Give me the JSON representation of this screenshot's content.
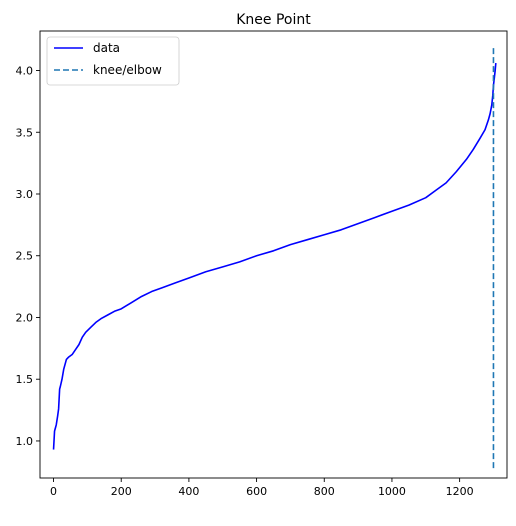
{
  "chart_data": {
    "type": "line",
    "title": "Knee Point",
    "xlabel": "",
    "ylabel": "",
    "xlim": [
      -40,
      1340
    ],
    "ylim": [
      0.7,
      4.32
    ],
    "xticks": [
      "0",
      "200",
      "400",
      "600",
      "800",
      "1000",
      "1200"
    ],
    "yticks": [
      "1.0",
      "1.5",
      "2.0",
      "2.5",
      "3.0",
      "3.5",
      "4.0"
    ],
    "grid": false,
    "legend": {
      "placement": "top-left"
    },
    "series": [
      {
        "name": "data",
        "color": "#0000ff",
        "style": "solid",
        "x": [
          0,
          3,
          5,
          8,
          12,
          15,
          18,
          20,
          25,
          30,
          38,
          45,
          55,
          65,
          75,
          85,
          95,
          110,
          125,
          140,
          160,
          180,
          200,
          230,
          260,
          290,
          320,
          360,
          400,
          450,
          500,
          550,
          600,
          650,
          700,
          750,
          800,
          850,
          900,
          950,
          1000,
          1050,
          1100,
          1130,
          1160,
          1190,
          1220,
          1240,
          1260,
          1275,
          1285,
          1290,
          1295,
          1298,
          1300,
          1303,
          1305,
          1307
        ],
        "y": [
          0.93,
          1.08,
          1.1,
          1.13,
          1.2,
          1.26,
          1.42,
          1.44,
          1.5,
          1.58,
          1.66,
          1.68,
          1.7,
          1.74,
          1.78,
          1.84,
          1.88,
          1.92,
          1.96,
          1.99,
          2.02,
          2.05,
          2.07,
          2.12,
          2.17,
          2.21,
          2.24,
          2.28,
          2.32,
          2.37,
          2.41,
          2.45,
          2.5,
          2.54,
          2.59,
          2.63,
          2.67,
          2.71,
          2.76,
          2.81,
          2.86,
          2.91,
          2.97,
          3.03,
          3.09,
          3.18,
          3.28,
          3.36,
          3.45,
          3.52,
          3.6,
          3.65,
          3.72,
          3.8,
          3.88,
          3.95,
          4.0,
          4.06
        ]
      },
      {
        "name": "knee/elbow",
        "color": "#1f77b4",
        "style": "dashed",
        "x": [
          1300,
          1300
        ],
        "y": [
          0.78,
          4.2
        ]
      }
    ]
  }
}
